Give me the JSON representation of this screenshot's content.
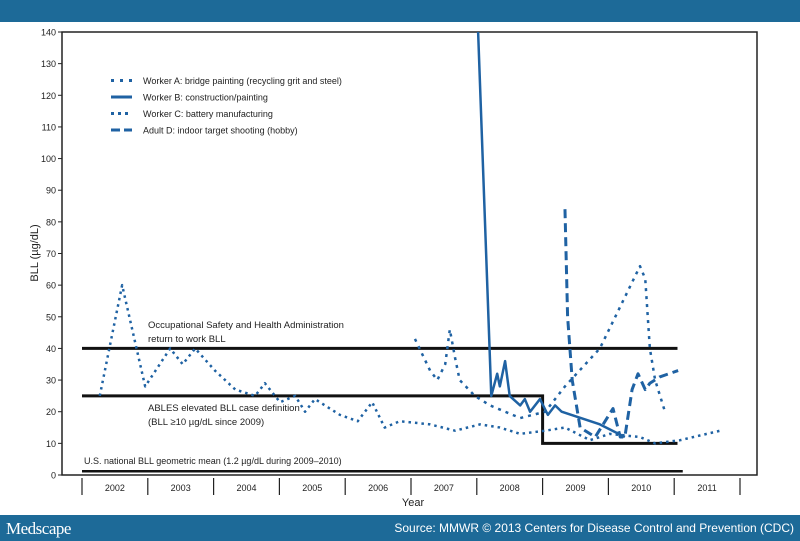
{
  "footer": {
    "brand": "Medscape",
    "source": "Source: MMWR © 2013 Centers for Disease Control and Prevention (CDC)"
  },
  "colors": {
    "header": "#1d6a98",
    "series": "#1f62a3",
    "reference": "#111111"
  },
  "chart_data": {
    "type": "line",
    "xlabel": "Year",
    "ylabel": "BLL (µg/dL)",
    "ylim": [
      0,
      140
    ],
    "yticks": [
      0,
      10,
      20,
      30,
      40,
      50,
      60,
      70,
      80,
      90,
      100,
      110,
      120,
      130,
      140
    ],
    "xlim": [
      2002,
      2012
    ],
    "xtick_labels": [
      "2002",
      "2003",
      "2004",
      "2005",
      "2006",
      "2007",
      "2008",
      "2009",
      "2010",
      "2011"
    ],
    "grid": false,
    "legend_position": "top-left",
    "series": [
      {
        "name": "Worker A:  bridge painting (recycling grit and steel)",
        "style": "sparse-dot",
        "points": [
          [
            2007.06,
            43
          ],
          [
            2007.29,
            33
          ],
          [
            2007.4,
            30
          ],
          [
            2007.52,
            35
          ],
          [
            2007.59,
            46
          ],
          [
            2007.67,
            37
          ],
          [
            2007.74,
            30
          ],
          [
            2007.97,
            25
          ],
          [
            2008.2,
            22
          ],
          [
            2008.43,
            20
          ],
          [
            2008.66,
            18
          ],
          [
            2009.04,
            20
          ],
          [
            2009.34,
            28
          ],
          [
            2009.87,
            40
          ],
          [
            2010.48,
            66
          ],
          [
            2010.56,
            62
          ],
          [
            2010.63,
            40
          ],
          [
            2010.71,
            30
          ],
          [
            2010.86,
            20
          ]
        ]
      },
      {
        "name": "Worker B:  construction/painting",
        "style": "solid",
        "points": [
          [
            2008.02,
            140
          ],
          [
            2008.22,
            25
          ],
          [
            2008.31,
            32
          ],
          [
            2008.35,
            28
          ],
          [
            2008.43,
            36
          ],
          [
            2008.5,
            25
          ],
          [
            2008.66,
            22
          ],
          [
            2008.73,
            24
          ],
          [
            2008.81,
            20
          ],
          [
            2008.96,
            24
          ],
          [
            2009.08,
            19
          ],
          [
            2009.19,
            22
          ],
          [
            2009.29,
            20
          ],
          [
            2009.87,
            16
          ],
          [
            2010.25,
            12
          ]
        ]
      },
      {
        "name": "Worker C:  battery manufacturing",
        "style": "dot",
        "points": [
          [
            2002.27,
            25
          ],
          [
            2002.61,
            60
          ],
          [
            2002.96,
            28
          ],
          [
            2003.34,
            40
          ],
          [
            2003.53,
            35
          ],
          [
            2003.72,
            40
          ],
          [
            2004.02,
            33
          ],
          [
            2004.33,
            27
          ],
          [
            2004.63,
            25
          ],
          [
            2004.78,
            29
          ],
          [
            2005.01,
            23
          ],
          [
            2005.24,
            25
          ],
          [
            2005.39,
            20
          ],
          [
            2005.54,
            24
          ],
          [
            2005.92,
            19
          ],
          [
            2006.19,
            17
          ],
          [
            2006.41,
            23
          ],
          [
            2006.6,
            15
          ],
          [
            2006.83,
            17
          ],
          [
            2007.29,
            16
          ],
          [
            2007.67,
            14
          ],
          [
            2008.05,
            16
          ],
          [
            2008.35,
            15
          ],
          [
            2008.66,
            13
          ],
          [
            2009.04,
            14
          ],
          [
            2009.34,
            15
          ],
          [
            2009.72,
            11
          ],
          [
            2010.02,
            13
          ],
          [
            2010.48,
            12
          ],
          [
            2010.71,
            10
          ],
          [
            2011.09,
            11
          ],
          [
            2011.7,
            14
          ]
        ]
      },
      {
        "name": "Adult D:  indoor target shooting (hobby)",
        "style": "dash",
        "points": [
          [
            2009.34,
            84
          ],
          [
            2009.38,
            50
          ],
          [
            2009.45,
            30
          ],
          [
            2009.57,
            15
          ],
          [
            2009.8,
            12
          ],
          [
            2009.95,
            17
          ],
          [
            2010.07,
            21
          ],
          [
            2010.18,
            12
          ],
          [
            2010.25,
            12
          ],
          [
            2010.36,
            27
          ],
          [
            2010.45,
            32
          ],
          [
            2010.56,
            27
          ],
          [
            2010.63,
            29
          ],
          [
            2010.78,
            31
          ],
          [
            2011.06,
            33
          ]
        ]
      }
    ],
    "reference_lines": [
      {
        "label_lines": [
          "Occupational Safety and Health Administration",
          "return to work BLL"
        ],
        "points": [
          [
            2002,
            40
          ],
          [
            2011.05,
            40
          ]
        ]
      },
      {
        "label_lines": [
          "ABLES elevated BLL case definition",
          "(BLL ≥10 µg/dL since 2009)"
        ],
        "points": [
          [
            2002,
            25
          ],
          [
            2009,
            25
          ],
          [
            2009,
            10
          ],
          [
            2011.05,
            10
          ]
        ]
      },
      {
        "label_lines": [
          "U.S. national BLL geometric mean (1.2 µg/dL during 2009–2010)"
        ],
        "points": [
          [
            2002,
            1.2
          ],
          [
            2011.13,
            1.2
          ]
        ]
      }
    ]
  }
}
